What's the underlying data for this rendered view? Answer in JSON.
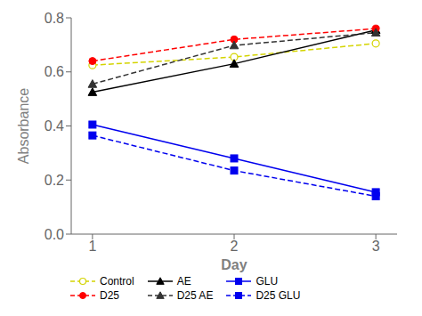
{
  "chart_data": {
    "type": "line",
    "x_label": "Day",
    "y_label": "Absorbance",
    "x": [
      1,
      2,
      3
    ],
    "series": [
      {
        "name": "Control",
        "color": "#d4d400",
        "values": [
          0.625,
          0.655,
          0.705
        ],
        "marker": "open_circle",
        "line_style": "dashed"
      },
      {
        "name": "AE",
        "color": "#000000",
        "values": [
          0.525,
          0.63,
          0.755
        ],
        "marker": "triangle",
        "line_style": "solid"
      },
      {
        "name": "GLU",
        "color": "#0000ee",
        "values": [
          0.405,
          0.28,
          0.155
        ],
        "marker": "square",
        "line_style": "solid"
      },
      {
        "name": "D25",
        "color": "#ff0000",
        "values": [
          0.64,
          0.72,
          0.76
        ],
        "marker": "circle",
        "line_style": "dashed"
      },
      {
        "name": "D25 AE",
        "color": "#333333",
        "values": [
          0.555,
          0.698,
          0.745
        ],
        "marker": "triangle",
        "line_style": "dashed"
      },
      {
        "name": "D25 GLU",
        "color": "#0000ee",
        "values": [
          0.365,
          0.235,
          0.14
        ],
        "marker": "square",
        "line_style": "dashed"
      }
    ],
    "xlim": [
      0.85,
      3.15
    ],
    "ylim": [
      0.0,
      0.8
    ],
    "xticks": [
      1,
      2,
      3
    ],
    "yticks": [
      {
        "value": 0.0,
        "label": "0.0"
      },
      0.2,
      0.4,
      0.6,
      0.8
    ],
    "grid": false,
    "legend": "lower left"
  }
}
